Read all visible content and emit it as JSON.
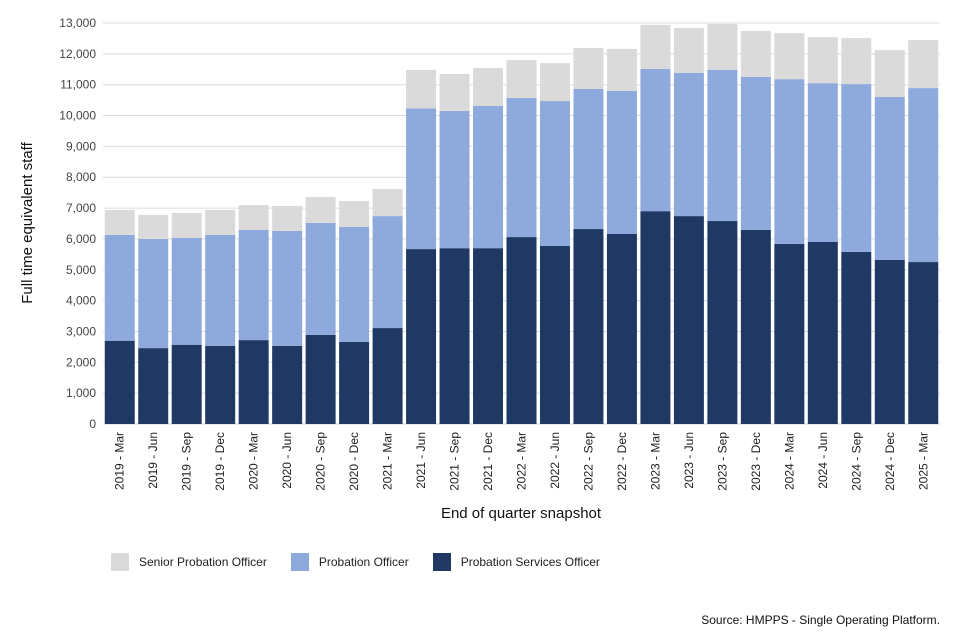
{
  "chart_data": {
    "type": "bar",
    "stacked": true,
    "title": "",
    "xlabel": "End of quarter snapshot",
    "ylabel": "Full time equivalent staff",
    "ylim": [
      0,
      13000
    ],
    "yticks": [
      0,
      1000,
      2000,
      3000,
      4000,
      5000,
      6000,
      7000,
      8000,
      9000,
      10000,
      11000,
      12000,
      13000
    ],
    "ytick_labels": [
      "0",
      "1,000",
      "2,000",
      "3,000",
      "4,000",
      "5,000",
      "6,000",
      "7,000",
      "8,000",
      "9,000",
      "10,000",
      "11,000",
      "12,000",
      "13,000"
    ],
    "grid": true,
    "legend_position": "bottom-left",
    "categories": [
      "2019 - Mar",
      "2019 - Jun",
      "2019 - Sep",
      "2019 - Dec",
      "2020 - Mar",
      "2020 - Jun",
      "2020 - Sep",
      "2020 - Dec",
      "2021 - Mar",
      "2021 - Jun",
      "2021 - Sep",
      "2021 - Dec",
      "2022 - Mar",
      "2022 - Jun",
      "2022 - Sep",
      "2022 - Dec",
      "2023 - Mar",
      "2023 - Jun",
      "2023 - Sep",
      "2023 - Dec",
      "2024 - Mar",
      "2024 - Jun",
      "2024 - Sep",
      "2024 - Dec",
      "2025 - Mar"
    ],
    "series": [
      {
        "name": "Probation Services Officer",
        "color": "#203864",
        "values": [
          2700,
          2460,
          2570,
          2530,
          2720,
          2530,
          2890,
          2660,
          3110,
          5670,
          5700,
          5700,
          6060,
          5770,
          6320,
          6160,
          6900,
          6740,
          6580,
          6290,
          5840,
          5900,
          5580,
          5320,
          5250
        ]
      },
      {
        "name": "Probation Officer",
        "color": "#8eaadc",
        "values": [
          3430,
          3540,
          3460,
          3600,
          3570,
          3730,
          3630,
          3730,
          3630,
          4560,
          4450,
          4610,
          4510,
          4700,
          4540,
          4640,
          4610,
          4640,
          4900,
          4960,
          5340,
          5150,
          5440,
          5280,
          5640
        ]
      },
      {
        "name": "Senior Probation Officer",
        "color": "#dadada",
        "values": [
          810,
          780,
          810,
          810,
          810,
          810,
          840,
          840,
          880,
          1250,
          1200,
          1230,
          1230,
          1230,
          1330,
          1360,
          1430,
          1460,
          1490,
          1490,
          1490,
          1490,
          1490,
          1520,
          1560
        ]
      }
    ],
    "legend": [
      "Senior Probation Officer",
      "Probation Officer",
      "Probation Services Officer"
    ]
  },
  "source": "Source: HMPPS - Single Operating Platform."
}
